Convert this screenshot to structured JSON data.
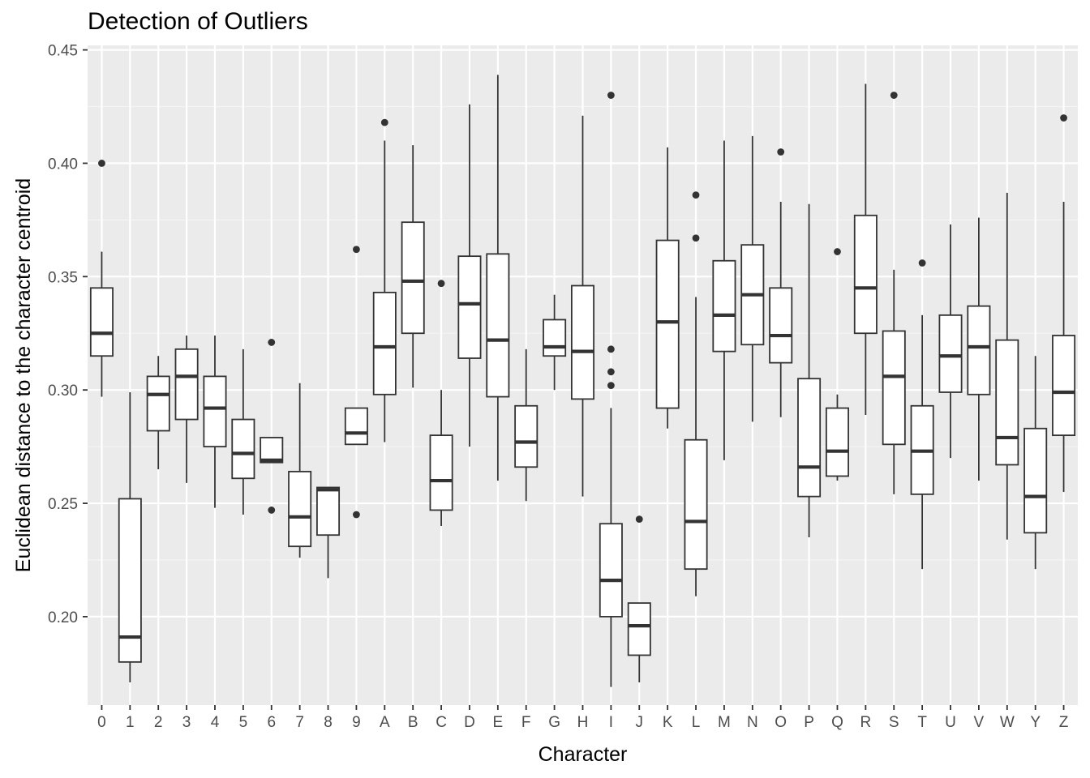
{
  "chart_data": {
    "type": "boxplot",
    "title": "Detection of Outliers",
    "xlabel": "Character",
    "ylabel": "Euclidean distance to the character centroid",
    "ylim": [
      0.161,
      0.452
    ],
    "yticks": [
      0.2,
      0.25,
      0.3,
      0.35,
      0.4,
      0.45
    ],
    "ytick_labels": [
      "0.20",
      "0.25",
      "0.30",
      "0.35",
      "0.40",
      "0.45"
    ],
    "grid": true,
    "legend": "none",
    "colors": {
      "panel": "#ebebeb",
      "grid_major": "#ffffff",
      "grid_minor": "#f5f5f5",
      "box_fill": "#ffffff",
      "box_line": "#333333"
    },
    "categories": [
      "0",
      "1",
      "2",
      "3",
      "4",
      "5",
      "6",
      "7",
      "8",
      "9",
      "A",
      "B",
      "C",
      "D",
      "E",
      "F",
      "G",
      "H",
      "I",
      "J",
      "K",
      "L",
      "M",
      "N",
      "O",
      "P",
      "Q",
      "R",
      "S",
      "T",
      "U",
      "V",
      "W",
      "Y",
      "Z"
    ],
    "boxes": [
      {
        "lo": 0.297,
        "q1": 0.315,
        "med": 0.325,
        "q3": 0.345,
        "hi": 0.361,
        "outliers": [
          0.4
        ]
      },
      {
        "lo": 0.171,
        "q1": 0.18,
        "med": 0.191,
        "q3": 0.252,
        "hi": 0.299,
        "outliers": []
      },
      {
        "lo": 0.265,
        "q1": 0.282,
        "med": 0.298,
        "q3": 0.306,
        "hi": 0.315,
        "outliers": []
      },
      {
        "lo": 0.259,
        "q1": 0.287,
        "med": 0.306,
        "q3": 0.318,
        "hi": 0.324,
        "outliers": []
      },
      {
        "lo": 0.248,
        "q1": 0.275,
        "med": 0.292,
        "q3": 0.306,
        "hi": 0.324,
        "outliers": []
      },
      {
        "lo": 0.245,
        "q1": 0.261,
        "med": 0.272,
        "q3": 0.287,
        "hi": 0.318,
        "outliers": []
      },
      {
        "lo": 0.268,
        "q1": 0.268,
        "med": 0.269,
        "q3": 0.279,
        "hi": 0.279,
        "outliers": [
          0.321,
          0.247
        ]
      },
      {
        "lo": 0.226,
        "q1": 0.231,
        "med": 0.244,
        "q3": 0.264,
        "hi": 0.303,
        "outliers": []
      },
      {
        "lo": 0.217,
        "q1": 0.236,
        "med": 0.256,
        "q3": 0.257,
        "hi": 0.257,
        "outliers": []
      },
      {
        "lo": 0.276,
        "q1": 0.276,
        "med": 0.281,
        "q3": 0.292,
        "hi": 0.292,
        "outliers": [
          0.362,
          0.245
        ]
      },
      {
        "lo": 0.277,
        "q1": 0.298,
        "med": 0.319,
        "q3": 0.343,
        "hi": 0.41,
        "outliers": [
          0.418
        ]
      },
      {
        "lo": 0.301,
        "q1": 0.325,
        "med": 0.348,
        "q3": 0.374,
        "hi": 0.408,
        "outliers": []
      },
      {
        "lo": 0.24,
        "q1": 0.247,
        "med": 0.26,
        "q3": 0.28,
        "hi": 0.3,
        "outliers": [
          0.347
        ]
      },
      {
        "lo": 0.275,
        "q1": 0.314,
        "med": 0.338,
        "q3": 0.359,
        "hi": 0.426,
        "outliers": []
      },
      {
        "lo": 0.26,
        "q1": 0.297,
        "med": 0.322,
        "q3": 0.36,
        "hi": 0.439,
        "outliers": []
      },
      {
        "lo": 0.251,
        "q1": 0.266,
        "med": 0.277,
        "q3": 0.293,
        "hi": 0.318,
        "outliers": []
      },
      {
        "lo": 0.3,
        "q1": 0.315,
        "med": 0.319,
        "q3": 0.331,
        "hi": 0.342,
        "outliers": []
      },
      {
        "lo": 0.253,
        "q1": 0.296,
        "med": 0.317,
        "q3": 0.346,
        "hi": 0.421,
        "outliers": []
      },
      {
        "lo": 0.169,
        "q1": 0.2,
        "med": 0.216,
        "q3": 0.241,
        "hi": 0.292,
        "outliers": [
          0.43,
          0.318,
          0.308,
          0.302
        ]
      },
      {
        "lo": 0.171,
        "q1": 0.183,
        "med": 0.196,
        "q3": 0.206,
        "hi": 0.206,
        "outliers": [
          0.243
        ]
      },
      {
        "lo": 0.283,
        "q1": 0.292,
        "med": 0.33,
        "q3": 0.366,
        "hi": 0.407,
        "outliers": []
      },
      {
        "lo": 0.209,
        "q1": 0.221,
        "med": 0.242,
        "q3": 0.278,
        "hi": 0.341,
        "outliers": [
          0.386,
          0.367
        ]
      },
      {
        "lo": 0.269,
        "q1": 0.317,
        "med": 0.333,
        "q3": 0.357,
        "hi": 0.41,
        "outliers": []
      },
      {
        "lo": 0.286,
        "q1": 0.32,
        "med": 0.342,
        "q3": 0.364,
        "hi": 0.412,
        "outliers": []
      },
      {
        "lo": 0.288,
        "q1": 0.312,
        "med": 0.324,
        "q3": 0.345,
        "hi": 0.383,
        "outliers": [
          0.405
        ]
      },
      {
        "lo": 0.235,
        "q1": 0.253,
        "med": 0.266,
        "q3": 0.305,
        "hi": 0.382,
        "outliers": []
      },
      {
        "lo": 0.26,
        "q1": 0.262,
        "med": 0.273,
        "q3": 0.292,
        "hi": 0.298,
        "outliers": [
          0.361
        ]
      },
      {
        "lo": 0.289,
        "q1": 0.325,
        "med": 0.345,
        "q3": 0.377,
        "hi": 0.435,
        "outliers": []
      },
      {
        "lo": 0.254,
        "q1": 0.276,
        "med": 0.306,
        "q3": 0.326,
        "hi": 0.353,
        "outliers": [
          0.43
        ]
      },
      {
        "lo": 0.221,
        "q1": 0.254,
        "med": 0.273,
        "q3": 0.293,
        "hi": 0.333,
        "outliers": [
          0.356
        ]
      },
      {
        "lo": 0.27,
        "q1": 0.299,
        "med": 0.315,
        "q3": 0.333,
        "hi": 0.373,
        "outliers": []
      },
      {
        "lo": 0.26,
        "q1": 0.298,
        "med": 0.319,
        "q3": 0.337,
        "hi": 0.376,
        "outliers": []
      },
      {
        "lo": 0.234,
        "q1": 0.267,
        "med": 0.279,
        "q3": 0.322,
        "hi": 0.387,
        "outliers": []
      },
      {
        "lo": 0.221,
        "q1": 0.237,
        "med": 0.253,
        "q3": 0.283,
        "hi": 0.315,
        "outliers": []
      },
      {
        "lo": 0.255,
        "q1": 0.28,
        "med": 0.299,
        "q3": 0.324,
        "hi": 0.383,
        "outliers": [
          0.42
        ]
      }
    ]
  }
}
